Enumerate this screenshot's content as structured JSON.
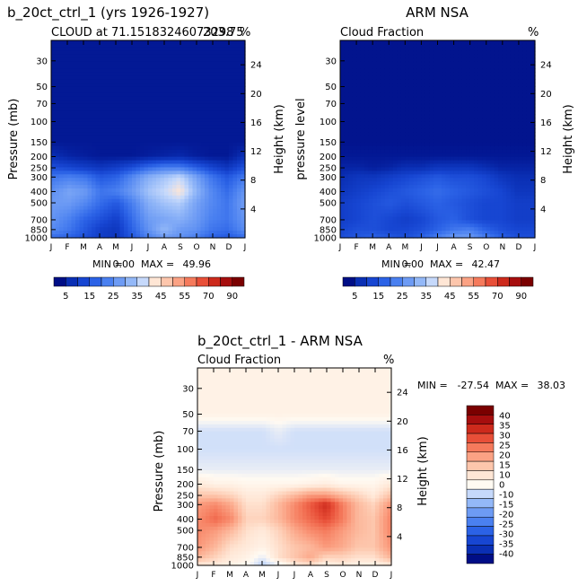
{
  "palettes": {
    "seq": [
      "#000e86",
      "#0a2fb4",
      "#1746d2",
      "#2b62e6",
      "#4a80f0",
      "#6d9bf4",
      "#93b8f8",
      "#c6d9fb",
      "#ffe6d5",
      "#fdc6ac",
      "#fba284",
      "#f57a5c",
      "#e84f38",
      "#cd2a1c",
      "#a60e0e",
      "#7a0000"
    ],
    "div": [
      "#000e86",
      "#0a2fb4",
      "#1746d2",
      "#2b62e6",
      "#4a80f0",
      "#6d9bf4",
      "#93b8f8",
      "#c6d9fb",
      "#fffaf2",
      "#ffe6d5",
      "#fdc6ac",
      "#fba284",
      "#f57a5c",
      "#e84f38",
      "#cd2a1c",
      "#a60e0e",
      "#7a0000"
    ]
  },
  "chart_data": [
    {
      "type": "heatmap",
      "id": "top-left",
      "title": "b_20ct_ctrl_1 (yrs 1926-1927)",
      "subtitle_left": "CLOUD at 71.15183246073298",
      "subtitle_right": "203.75",
      "unit": "%",
      "ylabel": "Pressure (mb)",
      "ylabel_right": "Height (km)",
      "x": [
        "J",
        "F",
        "M",
        "A",
        "M",
        "J",
        "J",
        "A",
        "S",
        "O",
        "N",
        "D",
        "J"
      ],
      "pressure_ticks": [
        30,
        50,
        70,
        100,
        150,
        200,
        250,
        300,
        400,
        500,
        700,
        850,
        1000
      ],
      "height_ticks": [
        24,
        20,
        16,
        12,
        8,
        4
      ],
      "ylim": [
        1000,
        20
      ],
      "stats": {
        "min_label": "MIN =",
        "min": "0.00",
        "max_label": "MAX =",
        "max": "49.96"
      },
      "colorbar_labels": [
        "5",
        "15",
        "25",
        "35",
        "45",
        "55",
        "70",
        "90"
      ],
      "rows": [
        [
          2,
          2,
          2,
          2,
          2,
          2,
          2,
          2,
          2,
          2,
          2,
          2,
          2
        ],
        [
          2,
          2,
          2,
          2,
          2,
          2,
          2,
          2,
          2,
          2,
          2,
          2,
          2
        ],
        [
          2,
          2,
          2,
          2,
          2,
          2,
          2,
          2,
          2,
          2,
          2,
          2,
          2
        ],
        [
          2,
          2,
          2,
          2,
          2,
          2,
          2,
          2,
          2,
          2,
          2,
          2,
          2
        ],
        [
          2,
          2,
          2,
          2,
          2,
          2,
          2,
          2,
          2,
          2,
          2,
          2,
          2
        ],
        [
          6,
          4,
          3,
          2,
          2,
          2,
          3,
          4,
          5,
          3,
          2,
          2,
          6
        ],
        [
          14,
          12,
          10,
          8,
          10,
          14,
          20,
          24,
          24,
          18,
          12,
          8,
          14
        ],
        [
          22,
          24,
          22,
          16,
          18,
          26,
          34,
          38,
          42,
          32,
          22,
          16,
          22
        ],
        [
          28,
          32,
          30,
          22,
          24,
          30,
          38,
          42,
          48,
          36,
          26,
          20,
          28
        ],
        [
          30,
          30,
          26,
          20,
          16,
          24,
          34,
          38,
          40,
          32,
          26,
          22,
          30
        ],
        [
          28,
          24,
          18,
          14,
          10,
          20,
          30,
          32,
          34,
          30,
          24,
          22,
          28
        ],
        [
          26,
          22,
          16,
          10,
          8,
          18,
          28,
          36,
          30,
          28,
          22,
          20,
          26
        ],
        [
          20,
          18,
          14,
          10,
          8,
          16,
          24,
          30,
          28,
          24,
          18,
          16,
          20
        ]
      ]
    },
    {
      "type": "heatmap",
      "id": "top-right",
      "title": "ARM NSA",
      "subtitle_left": "Cloud Fraction",
      "unit": "%",
      "ylabel": "pressure level",
      "ylabel_right": "Height (km)",
      "x": [
        "J",
        "F",
        "M",
        "A",
        "M",
        "J",
        "J",
        "A",
        "S",
        "O",
        "N",
        "D",
        "J"
      ],
      "pressure_ticks": [
        30,
        50,
        70,
        100,
        150,
        200,
        250,
        300,
        400,
        500,
        700,
        850,
        1000
      ],
      "height_ticks": [
        24,
        20,
        16,
        12,
        8,
        4
      ],
      "ylim": [
        1000,
        20
      ],
      "stats": {
        "min_label": "MIN =",
        "min": "0.00",
        "max_label": "MAX =",
        "max": "42.47"
      },
      "colorbar_labels": [
        "5",
        "15",
        "25",
        "35",
        "45",
        "55",
        "70",
        "90"
      ],
      "rows": [
        [
          1,
          1,
          1,
          1,
          1,
          1,
          1,
          1,
          1,
          1,
          1,
          1,
          1
        ],
        [
          1,
          1,
          1,
          1,
          1,
          1,
          1,
          1,
          1,
          1,
          1,
          1,
          1
        ],
        [
          1,
          1,
          1,
          1,
          1,
          1,
          1,
          1,
          1,
          1,
          1,
          1,
          1
        ],
        [
          1,
          1,
          1,
          1,
          1,
          1,
          1,
          1,
          1,
          1,
          1,
          1,
          1
        ],
        [
          1,
          1,
          1,
          1,
          1,
          1,
          1,
          1,
          1,
          1,
          1,
          1,
          1
        ],
        [
          2,
          2,
          2,
          2,
          2,
          2,
          2,
          2,
          2,
          2,
          2,
          2,
          2
        ],
        [
          4,
          4,
          3,
          4,
          6,
          6,
          8,
          8,
          8,
          6,
          4,
          4,
          4
        ],
        [
          6,
          8,
          8,
          10,
          12,
          14,
          16,
          14,
          14,
          12,
          8,
          6,
          6
        ],
        [
          8,
          10,
          12,
          14,
          16,
          18,
          20,
          18,
          16,
          14,
          12,
          8,
          8
        ],
        [
          10,
          12,
          14,
          16,
          14,
          16,
          18,
          16,
          14,
          12,
          12,
          10,
          10
        ],
        [
          10,
          12,
          14,
          12,
          10,
          12,
          16,
          18,
          14,
          12,
          12,
          10,
          10
        ],
        [
          12,
          14,
          14,
          12,
          12,
          14,
          18,
          22,
          24,
          18,
          14,
          12,
          12
        ],
        [
          14,
          16,
          18,
          16,
          14,
          18,
          24,
          30,
          30,
          24,
          18,
          14,
          14
        ]
      ]
    },
    {
      "type": "heatmap",
      "id": "bottom",
      "title": "b_20ct_ctrl_1 - ARM NSA",
      "subtitle_left": "Cloud Fraction",
      "unit": "%",
      "ylabel": "Pressure (mb)",
      "ylabel_right": "Height (km)",
      "x": [
        "J",
        "F",
        "M",
        "A",
        "M",
        "J",
        "J",
        "A",
        "S",
        "O",
        "N",
        "D",
        "J"
      ],
      "pressure_ticks": [
        30,
        50,
        70,
        100,
        150,
        200,
        250,
        300,
        400,
        500,
        700,
        850,
        1000
      ],
      "height_ticks": [
        24,
        20,
        16,
        12,
        8,
        4
      ],
      "ylim": [
        1000,
        20
      ],
      "stats": {
        "min_label": "MIN =",
        "min": "-27.54",
        "max_label": "MAX =",
        "max": "38.03"
      },
      "colorbar_labels": [
        "40",
        "35",
        "30",
        "25",
        "20",
        "15",
        "10",
        "0",
        "-10",
        "-15",
        "-20",
        "-25",
        "-30",
        "-35",
        "-40"
      ],
      "rows": [
        [
          2,
          2,
          2,
          2,
          2,
          2,
          2,
          2,
          2,
          2,
          2,
          2,
          2
        ],
        [
          2,
          2,
          2,
          2,
          2,
          2,
          2,
          2,
          2,
          2,
          2,
          2,
          2
        ],
        [
          -4,
          -4,
          -4,
          -4,
          -4,
          -2,
          -4,
          -4,
          -4,
          -4,
          -4,
          -4,
          -4
        ],
        [
          -4,
          -4,
          -4,
          -4,
          -4,
          -4,
          -4,
          -4,
          -4,
          -4,
          -4,
          -4,
          -4
        ],
        [
          -2,
          -2,
          -2,
          -2,
          -2,
          -2,
          -2,
          -2,
          -2,
          -2,
          -2,
          -2,
          -2
        ],
        [
          4,
          2,
          2,
          1,
          1,
          1,
          1,
          2,
          3,
          1,
          1,
          1,
          4
        ],
        [
          10,
          10,
          8,
          4,
          4,
          8,
          12,
          16,
          16,
          12,
          8,
          4,
          10
        ],
        [
          16,
          18,
          14,
          6,
          6,
          12,
          18,
          24,
          30,
          20,
          12,
          8,
          16
        ],
        [
          18,
          22,
          18,
          8,
          8,
          12,
          18,
          22,
          26,
          20,
          12,
          10,
          18
        ],
        [
          18,
          16,
          12,
          6,
          4,
          8,
          14,
          18,
          20,
          16,
          12,
          10,
          18
        ],
        [
          16,
          12,
          6,
          4,
          2,
          6,
          10,
          12,
          16,
          14,
          10,
          10,
          16
        ],
        [
          12,
          8,
          4,
          2,
          -2,
          6,
          10,
          14,
          8,
          8,
          6,
          6,
          12
        ],
        [
          4,
          4,
          2,
          0,
          -6,
          -2,
          4,
          6,
          2,
          4,
          2,
          2,
          4
        ]
      ]
    }
  ]
}
